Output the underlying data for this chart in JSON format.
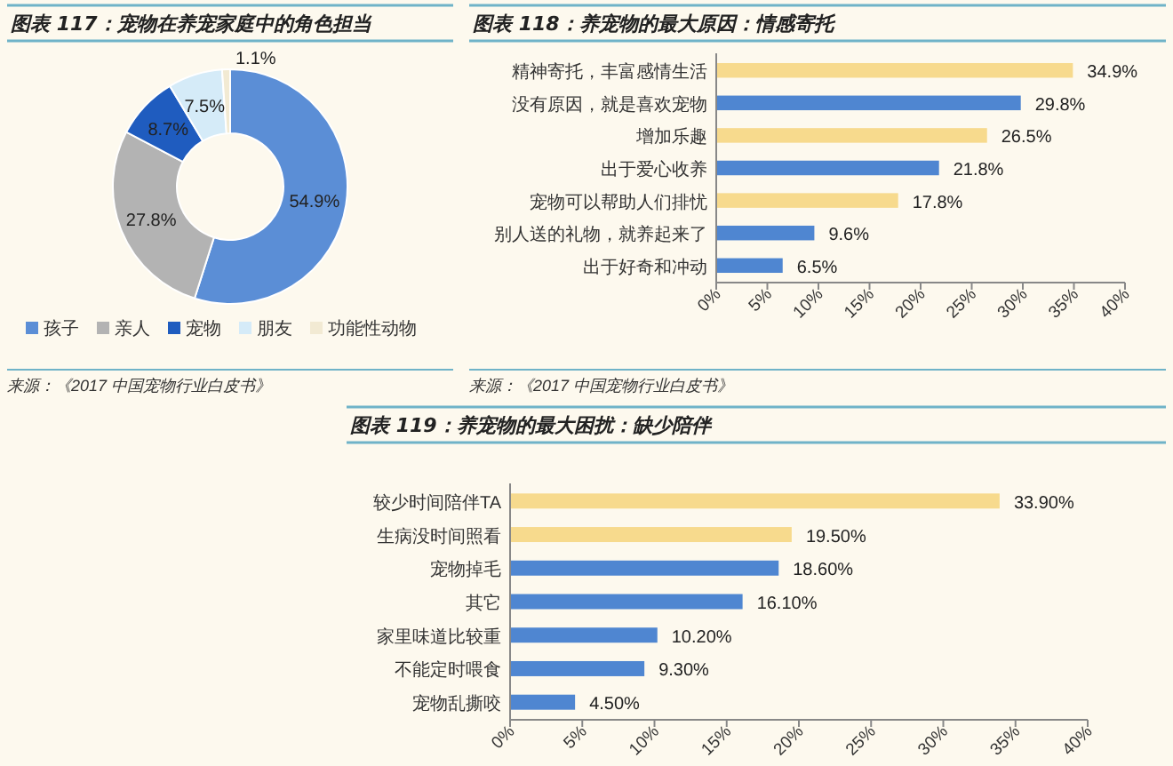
{
  "chart_data": [
    {
      "type": "donut",
      "title": "图表 117：宠物在养宠家庭中的角色担当",
      "categories": [
        "孩子",
        "亲人",
        "宠物",
        "朋友",
        "功能性动物"
      ],
      "values": [
        54.9,
        27.8,
        8.7,
        7.5,
        1.1
      ],
      "colors": [
        "#5b8ed6",
        "#b3b3b3",
        "#1f5cbf",
        "#d5ebf8",
        "#f2ead3"
      ],
      "value_labels": [
        "54.9%",
        "27.8%",
        "8.7%",
        "7.5%",
        "1.1%"
      ],
      "legend": "bottom",
      "annotations": [
        "来源：《2017 中国宠物行业白皮书》"
      ]
    },
    {
      "type": "bar",
      "orientation": "horizontal",
      "title": "图表 118：养宠物的最大原因：情感寄托",
      "categories": [
        "精神寄托，丰富感情生活",
        "没有原因，就是喜欢宠物",
        "增加乐趣",
        "出于爱心收养",
        "宠物可以帮助人们排忧",
        "别人送的礼物，就养起来了",
        "出于好奇和冲动"
      ],
      "values": [
        34.9,
        29.8,
        26.5,
        21.8,
        17.8,
        9.6,
        6.5
      ],
      "colors": [
        "#f7da8d",
        "#4f86d1",
        "#f7da8d",
        "#4f86d1",
        "#f7da8d",
        "#4f86d1",
        "#4f86d1"
      ],
      "value_labels": [
        "34.9%",
        "29.8%",
        "26.5%",
        "21.8%",
        "17.8%",
        "9.6%",
        "6.5%"
      ],
      "xlim": [
        0,
        40
      ],
      "xticks": [
        {
          "value": 0,
          "label": "0%"
        },
        {
          "value": 5,
          "label": "5%"
        },
        {
          "value": 10,
          "label": "10%"
        },
        {
          "value": 15,
          "label": "15%"
        },
        {
          "value": 20,
          "label": "20%"
        },
        {
          "value": 25,
          "label": "25%"
        },
        {
          "value": 30,
          "label": "30%"
        },
        {
          "value": 35,
          "label": "35%"
        },
        {
          "value": 40,
          "label": "40%"
        }
      ],
      "annotations": [
        "来源：《2017 中国宠物行业白皮书》"
      ]
    },
    {
      "type": "bar",
      "orientation": "horizontal",
      "title": "图表 119：养宠物的最大困扰：缺少陪伴",
      "categories": [
        "较少时间陪伴TA",
        "生病没时间照看",
        "宠物掉毛",
        "其它",
        "家里味道比较重",
        "不能定时喂食",
        "宠物乱撕咬"
      ],
      "values": [
        33.9,
        19.5,
        18.6,
        16.1,
        10.2,
        9.3,
        4.5
      ],
      "colors": [
        "#f7da8d",
        "#f7da8d",
        "#4f86d1",
        "#4f86d1",
        "#4f86d1",
        "#4f86d1",
        "#4f86d1"
      ],
      "value_labels": [
        "33.90%",
        "19.50%",
        "18.60%",
        "16.10%",
        "10.20%",
        "9.30%",
        "4.50%"
      ],
      "xlim": [
        0,
        40
      ],
      "xticks": [
        {
          "value": 0,
          "label": "0%"
        },
        {
          "value": 5,
          "label": "5%"
        },
        {
          "value": 10,
          "label": "10%"
        },
        {
          "value": 15,
          "label": "15%"
        },
        {
          "value": 20,
          "label": "20%"
        },
        {
          "value": 25,
          "label": "25%"
        },
        {
          "value": 30,
          "label": "30%"
        },
        {
          "value": 35,
          "label": "35%"
        },
        {
          "value": 40,
          "label": "40%"
        }
      ]
    }
  ]
}
